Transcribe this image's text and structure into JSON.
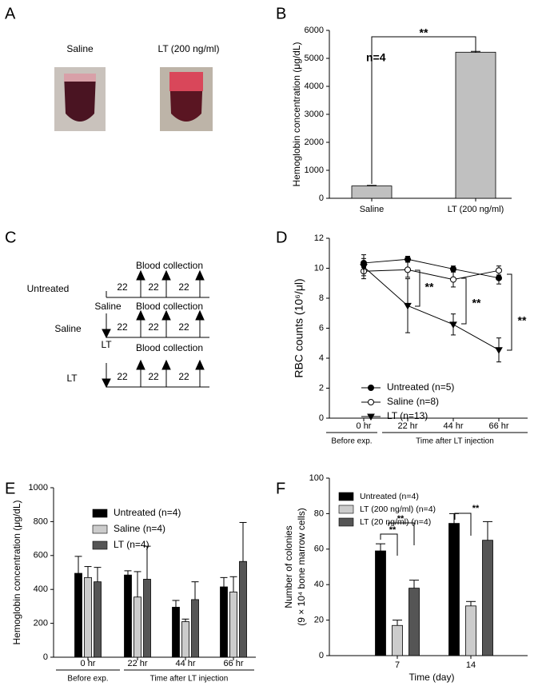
{
  "panel_a": {
    "panel": "A",
    "labels": [
      "Saline",
      "LT (200 ng/ml)"
    ]
  },
  "panel_c": {
    "panel": "C",
    "rows": [
      {
        "label": "Untreated",
        "header": "Blood collection",
        "intervals": [
          "22",
          "22",
          "22"
        ]
      },
      {
        "label": "Saline",
        "treatment": "Saline",
        "header": "Blood collection",
        "intervals": [
          "22",
          "22",
          "22"
        ]
      },
      {
        "label": "LT",
        "treatment": "LT",
        "header": "Blood collection",
        "intervals": [
          "22",
          "22",
          "22"
        ]
      }
    ]
  },
  "chart_data": [
    {
      "panel": "B",
      "type": "bar",
      "y_label": "Hemoglobin concentration (μg/dL)",
      "categories": [
        "Saline",
        "LT (200 ng/ml)"
      ],
      "values": [
        440,
        5220
      ],
      "errors": [
        20,
        30
      ],
      "color": "#c0c0c0",
      "ylim": [
        0,
        6000
      ],
      "yticks": [
        0,
        1000,
        2000,
        3000,
        4000,
        5000,
        6000
      ],
      "annotations": [
        "n=4",
        "**"
      ]
    },
    {
      "panel": "D",
      "type": "line",
      "y_label": "RBC counts (10⁶/μl)",
      "categories": [
        "0 hr",
        "22 hr",
        "44 hr",
        "66 hr"
      ],
      "x_groups": [
        "Before exp.",
        "Time after LT injection"
      ],
      "series": [
        {
          "name": "Untreated (n=5)",
          "color": "#000000",
          "marker": "circle",
          "values": [
            10.35,
            10.6,
            9.95,
            9.35
          ],
          "errors": [
            0.3,
            0.2,
            0.2,
            0.4
          ]
        },
        {
          "name": "Saline (n=8)",
          "color": "#000000",
          "marker": "open-circle",
          "values": [
            9.8,
            9.9,
            9.25,
            9.85
          ],
          "errors": [
            0.3,
            0.5,
            0.5,
            0.3
          ]
        },
        {
          "name": "LT (n=13)",
          "color": "#000000",
          "marker": "triangle-down",
          "values": [
            10.1,
            7.5,
            6.25,
            4.55
          ],
          "errors": [
            0.8,
            1.8,
            0.7,
            0.8
          ]
        }
      ],
      "ylim": [
        0,
        12
      ],
      "yticks": [
        0,
        2,
        4,
        6,
        8,
        10,
        12
      ],
      "annotations": [
        "**",
        "**",
        "**"
      ]
    },
    {
      "panel": "E",
      "type": "bar",
      "y_label": "Hemoglobin concentration (μg/dL)",
      "categories": [
        "0 hr",
        "22 hr",
        "44 hr",
        "66 hr"
      ],
      "x_groups": [
        "Before exp.",
        "Time after LT injection"
      ],
      "series": [
        {
          "name": "Untreated (n=4)",
          "color": "#000000",
          "values": [
            495,
            485,
            295,
            415
          ],
          "errors": [
            100,
            25,
            40,
            55
          ]
        },
        {
          "name": "Saline (n=4)",
          "color": "#cccccc",
          "values": [
            470,
            355,
            210,
            385
          ],
          "errors": [
            65,
            150,
            15,
            90
          ]
        },
        {
          "name": "LT (n=4)",
          "color": "#555555",
          "values": [
            445,
            460,
            340,
            565
          ],
          "errors": [
            85,
            195,
            105,
            230
          ]
        }
      ],
      "ylim": [
        0,
        1000
      ],
      "yticks": [
        0,
        200,
        400,
        600,
        800,
        1000
      ]
    },
    {
      "panel": "F",
      "type": "bar",
      "y_label": [
        "Number of colonies",
        "(9 × 10⁴ bone marrow cells)"
      ],
      "x_label": "Time (day)",
      "categories": [
        "7",
        "14"
      ],
      "series": [
        {
          "name": "Untreated (n=4)",
          "color": "#000000",
          "values": [
            59,
            74.5
          ],
          "errors": [
            4,
            5.5
          ]
        },
        {
          "name": "LT (200 ng/ml) (n=4)",
          "color": "#cccccc",
          "values": [
            17,
            28
          ],
          "errors": [
            3,
            2.5
          ]
        },
        {
          "name": "LT (20 ng/ml) (n=4)",
          "color": "#555555",
          "values": [
            38,
            65
          ],
          "errors": [
            4.5,
            10.5
          ]
        }
      ],
      "ylim": [
        0,
        100
      ],
      "yticks": [
        0,
        20,
        40,
        60,
        80,
        100
      ],
      "annotations": [
        "**",
        "**",
        "**"
      ]
    }
  ]
}
